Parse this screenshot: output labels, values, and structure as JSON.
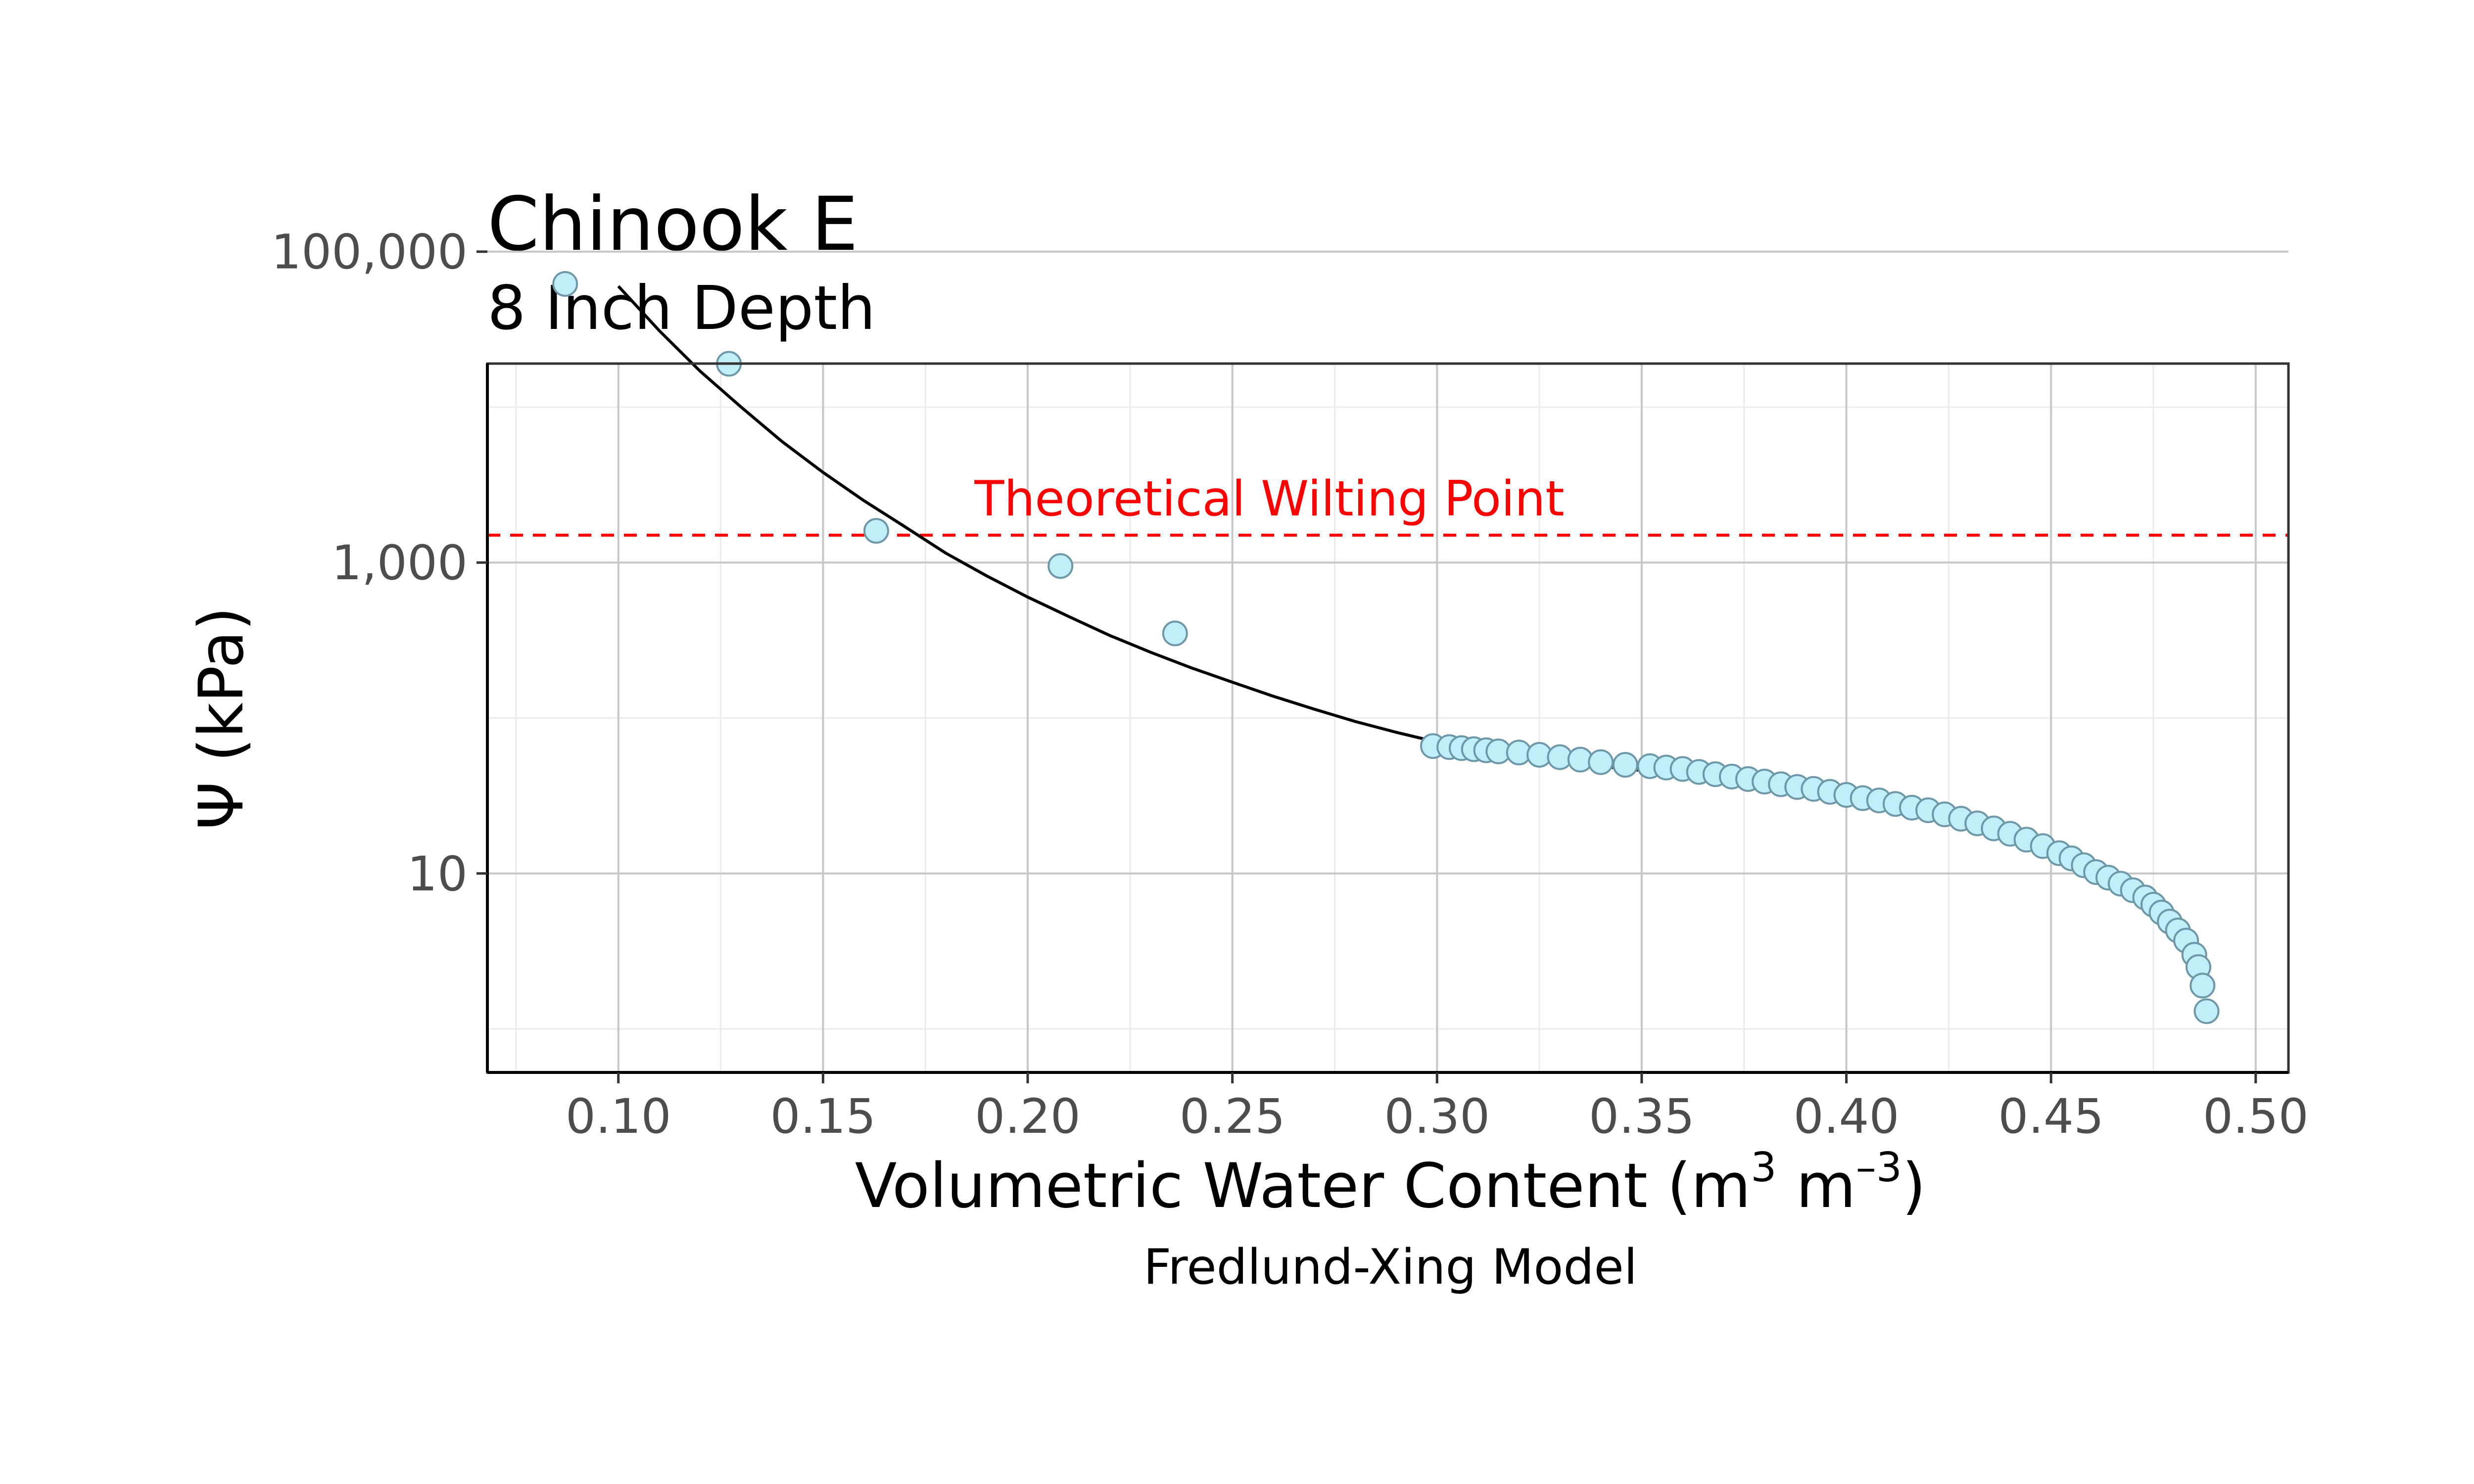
{
  "chart_data": {
    "type": "scatter",
    "title": "Chinook E",
    "subtitle": "8 Inch Depth",
    "xlabel_main": "Volumetric Water Content (m",
    "xlabel_sup1": "3",
    "xlabel_mid": " m",
    "xlabel_sup2": "–3",
    "xlabel_end": ")",
    "ylabel": "Ψ (kPa)",
    "caption": "Fredlund-Xing Model",
    "y_scale": "log10",
    "xlim": [
      0.068,
      0.508
    ],
    "ylim_log10": [
      -0.28,
      4.28
    ],
    "x_ticks": [
      0.1,
      0.15,
      0.2,
      0.25,
      0.3,
      0.35,
      0.4,
      0.45,
      0.5
    ],
    "x_tick_labels": [
      "0.10",
      "0.15",
      "0.20",
      "0.25",
      "0.30",
      "0.35",
      "0.40",
      "0.45",
      "0.50"
    ],
    "y_ticks": [
      10,
      1000,
      100000
    ],
    "y_tick_labels": [
      "10",
      "1,000",
      "100,000"
    ],
    "grid": true,
    "colors": {
      "point_fill": "#c2eefa",
      "point_stroke": "#6e98a8",
      "curve": "#000000",
      "reference_line": "#ff0000"
    },
    "reference_line": {
      "label": "Theoretical Wilting Point",
      "y": 1500
    },
    "series": [
      {
        "type": "points",
        "points": [
          [
            0.087,
            62000
          ],
          [
            0.127,
            19000
          ],
          [
            0.163,
            1600
          ],
          [
            0.208,
            950
          ],
          [
            0.236,
            350
          ],
          [
            0.299,
            66
          ],
          [
            0.303,
            65
          ],
          [
            0.306,
            64
          ],
          [
            0.309,
            63
          ],
          [
            0.312,
            62
          ],
          [
            0.315,
            61
          ],
          [
            0.32,
            60
          ],
          [
            0.325,
            58
          ],
          [
            0.33,
            56
          ],
          [
            0.335,
            54
          ],
          [
            0.34,
            52
          ],
          [
            0.346,
            50
          ],
          [
            0.352,
            49
          ],
          [
            0.356,
            48
          ],
          [
            0.36,
            47
          ],
          [
            0.364,
            45
          ],
          [
            0.368,
            43.5
          ],
          [
            0.372,
            42
          ],
          [
            0.376,
            40.5
          ],
          [
            0.38,
            39
          ],
          [
            0.384,
            37.5
          ],
          [
            0.388,
            36
          ],
          [
            0.392,
            35
          ],
          [
            0.396,
            33.5
          ],
          [
            0.4,
            32
          ],
          [
            0.404,
            30.5
          ],
          [
            0.408,
            29.5
          ],
          [
            0.412,
            28
          ],
          [
            0.416,
            26.5
          ],
          [
            0.42,
            25.5
          ],
          [
            0.424,
            24
          ],
          [
            0.428,
            22.5
          ],
          [
            0.432,
            21
          ],
          [
            0.436,
            19.5
          ],
          [
            0.44,
            18
          ],
          [
            0.444,
            16.5
          ],
          [
            0.448,
            15
          ],
          [
            0.452,
            13.5
          ],
          [
            0.455,
            12.5
          ],
          [
            0.458,
            11.3
          ],
          [
            0.461,
            10.2
          ],
          [
            0.464,
            9.4
          ],
          [
            0.467,
            8.6
          ],
          [
            0.47,
            7.8
          ],
          [
            0.473,
            7.0
          ],
          [
            0.475,
            6.3
          ],
          [
            0.477,
            5.6
          ],
          [
            0.479,
            4.9
          ],
          [
            0.481,
            4.3
          ],
          [
            0.483,
            3.7
          ],
          [
            0.485,
            3.0
          ],
          [
            0.486,
            2.5
          ],
          [
            0.487,
            1.9
          ],
          [
            0.488,
            1.3
          ]
        ]
      },
      {
        "type": "fit_curve",
        "points": [
          [
            0.1,
            60000
          ],
          [
            0.11,
            31000
          ],
          [
            0.12,
            17000
          ],
          [
            0.13,
            10000
          ],
          [
            0.14,
            6000
          ],
          [
            0.15,
            3800
          ],
          [
            0.16,
            2500
          ],
          [
            0.17,
            1700
          ],
          [
            0.18,
            1150
          ],
          [
            0.19,
            820
          ],
          [
            0.2,
            600
          ],
          [
            0.21,
            450
          ],
          [
            0.22,
            340
          ],
          [
            0.23,
            265
          ],
          [
            0.24,
            210
          ],
          [
            0.25,
            170
          ],
          [
            0.26,
            138
          ],
          [
            0.27,
            114
          ],
          [
            0.28,
            95
          ],
          [
            0.29,
            81
          ],
          [
            0.3,
            70
          ],
          [
            0.31,
            61
          ],
          [
            0.32,
            56
          ],
          [
            0.33,
            52
          ],
          [
            0.34,
            49
          ],
          [
            0.35,
            46
          ],
          [
            0.36,
            43
          ],
          [
            0.37,
            40
          ],
          [
            0.38,
            37
          ],
          [
            0.39,
            34
          ],
          [
            0.4,
            31
          ],
          [
            0.41,
            28
          ],
          [
            0.42,
            25
          ],
          [
            0.43,
            21.8
          ],
          [
            0.44,
            18.5
          ],
          [
            0.45,
            15.2
          ],
          [
            0.46,
            11.6
          ],
          [
            0.465,
            9.7
          ],
          [
            0.47,
            7.8
          ],
          [
            0.475,
            6.0
          ],
          [
            0.478,
            4.8
          ],
          [
            0.481,
            3.7
          ],
          [
            0.483,
            2.9
          ],
          [
            0.485,
            2.1
          ],
          [
            0.486,
            1.6
          ]
        ]
      }
    ]
  }
}
